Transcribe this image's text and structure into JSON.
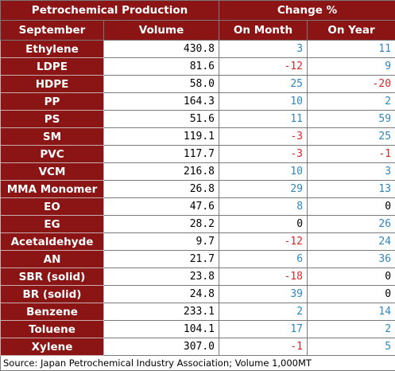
{
  "header": {
    "title": "Petrochemical Production",
    "change_title": "Change %",
    "col_month": "September",
    "col_volume": "Volume",
    "col_on_month": "On Month",
    "col_on_year": "On Year"
  },
  "rows": [
    {
      "name": "Ethylene",
      "volume": "430.8",
      "on_month": "3",
      "on_year": "11"
    },
    {
      "name": "LDPE",
      "volume": "81.6",
      "on_month": "-12",
      "on_year": "9"
    },
    {
      "name": "HDPE",
      "volume": "58.0",
      "on_month": "25",
      "on_year": "-20"
    },
    {
      "name": "PP",
      "volume": "164.3",
      "on_month": "10",
      "on_year": "2"
    },
    {
      "name": "PS",
      "volume": "51.6",
      "on_month": "11",
      "on_year": "59"
    },
    {
      "name": "SM",
      "volume": "119.1",
      "on_month": "-3",
      "on_year": "25"
    },
    {
      "name": "PVC",
      "volume": "117.7",
      "on_month": "-3",
      "on_year": "-1"
    },
    {
      "name": "VCM",
      "volume": "216.8",
      "on_month": "10",
      "on_year": "3"
    },
    {
      "name": "MMA Monomer",
      "volume": "26.8",
      "on_month": "29",
      "on_year": "13"
    },
    {
      "name": "EO",
      "volume": "47.6",
      "on_month": "8",
      "on_year": "0"
    },
    {
      "name": "EG",
      "volume": "28.2",
      "on_month": "0",
      "on_year": "26"
    },
    {
      "name": "Acetaldehyde",
      "volume": "9.7",
      "on_month": "-12",
      "on_year": "24"
    },
    {
      "name": "AN",
      "volume": "21.7",
      "on_month": "6",
      "on_year": "36"
    },
    {
      "name": "SBR (solid)",
      "volume": "23.8",
      "on_month": "-18",
      "on_year": "0"
    },
    {
      "name": "BR (solid)",
      "volume": "24.8",
      "on_month": "39",
      "on_year": "0"
    },
    {
      "name": "Benzene",
      "volume": "233.1",
      "on_month": "2",
      "on_year": "14"
    },
    {
      "name": "Toluene",
      "volume": "104.1",
      "on_month": "17",
      "on_year": "2"
    },
    {
      "name": "Xylene",
      "volume": "307.0",
      "on_month": "-1",
      "on_year": "5"
    }
  ],
  "source": "Source: Japan Petrochemical Industry Association; Volume 1,000MT",
  "colors": {
    "header_bg": "#8b1515",
    "positive": "#2e86c1",
    "negative": "#d62727",
    "zero": "#000000"
  }
}
